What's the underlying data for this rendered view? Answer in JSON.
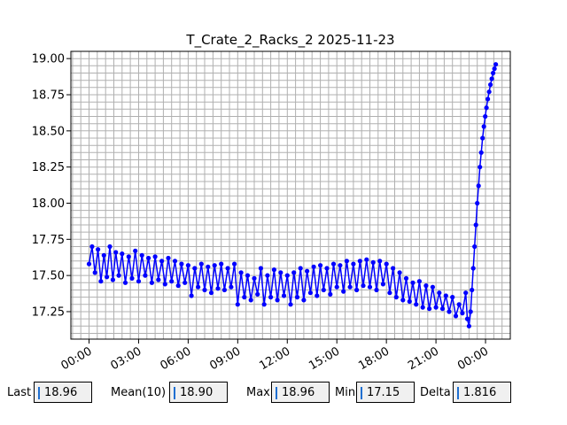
{
  "chart_data": {
    "type": "line",
    "title": "T_Crate_2_Racks_2 2025-11-23",
    "xlabel": "",
    "ylabel": "",
    "x_unit": "hours since 00:00 on 2025-11-23",
    "xlim": [
      -1.1,
      25.5
    ],
    "ylim": [
      17.06,
      19.05
    ],
    "x_ticks": [
      {
        "value": 0,
        "label": "00:00"
      },
      {
        "value": 3,
        "label": "03:00"
      },
      {
        "value": 6,
        "label": "06:00"
      },
      {
        "value": 9,
        "label": "09:00"
      },
      {
        "value": 12,
        "label": "12:00"
      },
      {
        "value": 15,
        "label": "15:00"
      },
      {
        "value": 18,
        "label": "18:00"
      },
      {
        "value": 21,
        "label": "21:00"
      },
      {
        "value": 24,
        "label": "00:00"
      }
    ],
    "y_ticks": [
      {
        "value": 17.25,
        "label": "17.25"
      },
      {
        "value": 17.5,
        "label": "17.50"
      },
      {
        "value": 17.75,
        "label": "17.75"
      },
      {
        "value": 18.0,
        "label": "18.00"
      },
      {
        "value": 18.25,
        "label": "18.25"
      },
      {
        "value": 18.5,
        "label": "18.50"
      },
      {
        "value": 18.75,
        "label": "18.75"
      },
      {
        "value": 19.0,
        "label": "19.00"
      }
    ],
    "grid": true,
    "minor_grid": true,
    "legend": "none",
    "series": [
      {
        "color": "#0000ff",
        "marker": "circle",
        "points": [
          [
            0.0,
            17.58
          ],
          [
            0.18,
            17.7
          ],
          [
            0.36,
            17.52
          ],
          [
            0.54,
            17.68
          ],
          [
            0.72,
            17.46
          ],
          [
            0.9,
            17.64
          ],
          [
            1.08,
            17.49
          ],
          [
            1.26,
            17.7
          ],
          [
            1.44,
            17.47
          ],
          [
            1.62,
            17.66
          ],
          [
            1.8,
            17.5
          ],
          [
            2.0,
            17.65
          ],
          [
            2.2,
            17.45
          ],
          [
            2.4,
            17.63
          ],
          [
            2.6,
            17.48
          ],
          [
            2.8,
            17.67
          ],
          [
            3.0,
            17.46
          ],
          [
            3.2,
            17.64
          ],
          [
            3.4,
            17.5
          ],
          [
            3.6,
            17.62
          ],
          [
            3.8,
            17.45
          ],
          [
            4.0,
            17.63
          ],
          [
            4.2,
            17.47
          ],
          [
            4.4,
            17.6
          ],
          [
            4.6,
            17.44
          ],
          [
            4.8,
            17.62
          ],
          [
            5.0,
            17.46
          ],
          [
            5.2,
            17.6
          ],
          [
            5.4,
            17.43
          ],
          [
            5.6,
            17.58
          ],
          [
            5.8,
            17.45
          ],
          [
            6.0,
            17.57
          ],
          [
            6.2,
            17.36
          ],
          [
            6.4,
            17.55
          ],
          [
            6.6,
            17.42
          ],
          [
            6.8,
            17.58
          ],
          [
            7.0,
            17.4
          ],
          [
            7.2,
            17.56
          ],
          [
            7.4,
            17.38
          ],
          [
            7.6,
            17.57
          ],
          [
            7.8,
            17.41
          ],
          [
            8.0,
            17.58
          ],
          [
            8.2,
            17.4
          ],
          [
            8.4,
            17.55
          ],
          [
            8.6,
            17.42
          ],
          [
            8.8,
            17.58
          ],
          [
            9.0,
            17.3
          ],
          [
            9.2,
            17.52
          ],
          [
            9.4,
            17.35
          ],
          [
            9.6,
            17.5
          ],
          [
            9.8,
            17.33
          ],
          [
            10.0,
            17.48
          ],
          [
            10.2,
            17.37
          ],
          [
            10.4,
            17.55
          ],
          [
            10.6,
            17.3
          ],
          [
            10.8,
            17.5
          ],
          [
            11.0,
            17.35
          ],
          [
            11.2,
            17.54
          ],
          [
            11.4,
            17.33
          ],
          [
            11.6,
            17.52
          ],
          [
            11.8,
            17.36
          ],
          [
            12.0,
            17.5
          ],
          [
            12.2,
            17.3
          ],
          [
            12.4,
            17.52
          ],
          [
            12.6,
            17.35
          ],
          [
            12.8,
            17.55
          ],
          [
            13.0,
            17.33
          ],
          [
            13.2,
            17.53
          ],
          [
            13.4,
            17.38
          ],
          [
            13.6,
            17.56
          ],
          [
            13.8,
            17.36
          ],
          [
            14.0,
            17.57
          ],
          [
            14.2,
            17.4
          ],
          [
            14.4,
            17.55
          ],
          [
            14.6,
            17.37
          ],
          [
            14.8,
            17.58
          ],
          [
            15.0,
            17.42
          ],
          [
            15.2,
            17.57
          ],
          [
            15.4,
            17.39
          ],
          [
            15.6,
            17.6
          ],
          [
            15.8,
            17.42
          ],
          [
            16.0,
            17.58
          ],
          [
            16.2,
            17.4
          ],
          [
            16.4,
            17.6
          ],
          [
            16.6,
            17.43
          ],
          [
            16.8,
            17.61
          ],
          [
            17.0,
            17.42
          ],
          [
            17.2,
            17.59
          ],
          [
            17.4,
            17.4
          ],
          [
            17.6,
            17.6
          ],
          [
            17.8,
            17.44
          ],
          [
            18.0,
            17.58
          ],
          [
            18.2,
            17.38
          ],
          [
            18.4,
            17.55
          ],
          [
            18.6,
            17.35
          ],
          [
            18.8,
            17.52
          ],
          [
            19.0,
            17.33
          ],
          [
            19.2,
            17.48
          ],
          [
            19.4,
            17.32
          ],
          [
            19.6,
            17.45
          ],
          [
            19.8,
            17.3
          ],
          [
            20.0,
            17.46
          ],
          [
            20.2,
            17.28
          ],
          [
            20.4,
            17.43
          ],
          [
            20.6,
            17.27
          ],
          [
            20.8,
            17.42
          ],
          [
            21.0,
            17.28
          ],
          [
            21.2,
            17.38
          ],
          [
            21.4,
            17.27
          ],
          [
            21.6,
            17.36
          ],
          [
            21.8,
            17.25
          ],
          [
            22.0,
            17.35
          ],
          [
            22.2,
            17.22
          ],
          [
            22.4,
            17.3
          ],
          [
            22.6,
            17.24
          ],
          [
            22.8,
            17.38
          ],
          [
            22.9,
            17.2
          ],
          [
            23.0,
            17.15
          ],
          [
            23.1,
            17.25
          ],
          [
            23.18,
            17.4
          ],
          [
            23.26,
            17.55
          ],
          [
            23.34,
            17.7
          ],
          [
            23.42,
            17.85
          ],
          [
            23.5,
            18.0
          ],
          [
            23.58,
            18.12
          ],
          [
            23.66,
            18.25
          ],
          [
            23.74,
            18.35
          ],
          [
            23.82,
            18.45
          ],
          [
            23.9,
            18.53
          ],
          [
            23.98,
            18.6
          ],
          [
            24.06,
            18.66
          ],
          [
            24.14,
            18.72
          ],
          [
            24.22,
            18.77
          ],
          [
            24.3,
            18.82
          ],
          [
            24.38,
            18.86
          ],
          [
            24.46,
            18.9
          ],
          [
            24.54,
            18.93
          ],
          [
            24.62,
            18.96
          ]
        ]
      }
    ]
  },
  "stats": [
    {
      "label": "Last",
      "value": "18.96"
    },
    {
      "label": "Mean(10)",
      "value": "18.90"
    },
    {
      "label": "Max",
      "value": "18.96"
    },
    {
      "label": "Min",
      "value": "17.15"
    },
    {
      "label": "Delta",
      "value": "1.816"
    }
  ]
}
